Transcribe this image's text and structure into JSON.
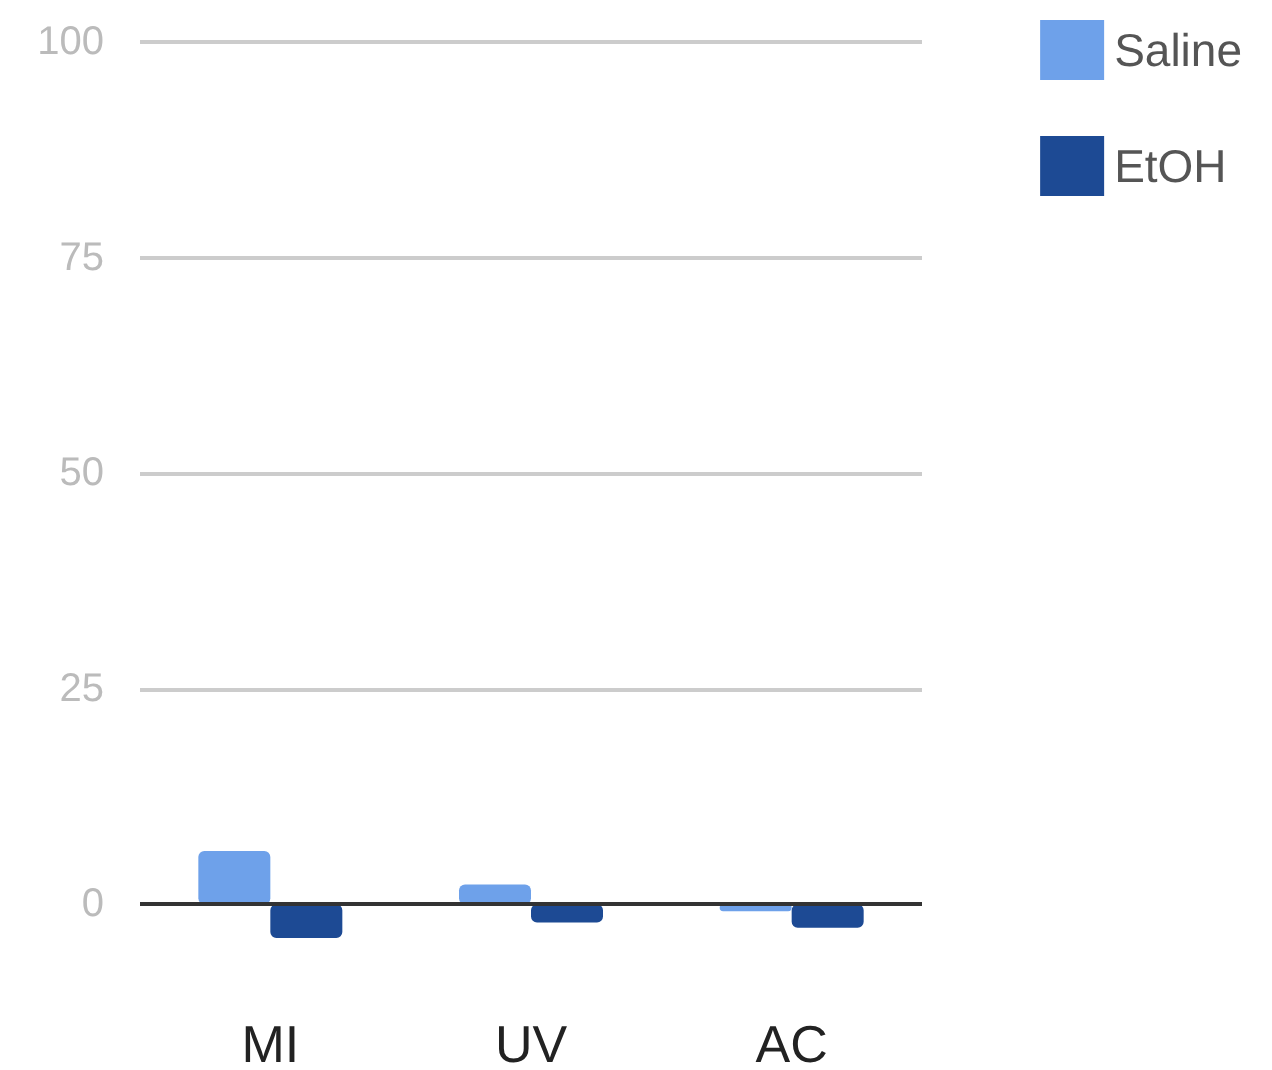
{
  "chart_data": {
    "type": "bar",
    "categories": [
      "MI",
      "UV",
      "AC"
    ],
    "series": [
      {
        "name": "Saline",
        "color": "#6ea1ea",
        "values": [
          6.2,
          2.3,
          -0.8
        ]
      },
      {
        "name": "EtOH",
        "color": "#1d4a94",
        "values": [
          -3.9,
          -2.1,
          -2.7
        ]
      }
    ],
    "ylim": [
      -3.9,
      100
    ],
    "yticks": [
      0,
      25,
      50,
      75,
      100
    ],
    "grid": "y",
    "legend": "top right"
  }
}
